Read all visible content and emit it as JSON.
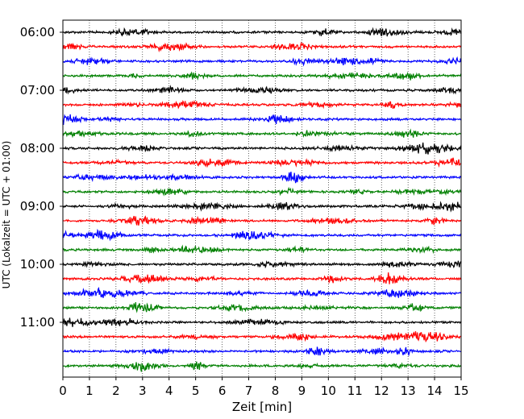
{
  "chart_data": {
    "type": "line",
    "title": "",
    "xlabel": "Zeit  [min]",
    "ylabel": "UTC (Lokalzeit = UTC + 01:00)",
    "xlim": [
      0,
      15
    ],
    "x_ticks": [
      "0",
      "1",
      "2",
      "3",
      "4",
      "5",
      "6",
      "7",
      "8",
      "9",
      "10",
      "11",
      "12",
      "13",
      "14",
      "15"
    ],
    "y_ticks": [
      "06:00",
      "07:00",
      "08:00",
      "09:00",
      "10:00",
      "11:00"
    ],
    "trace_minutes_per_line": 15,
    "start_time": "06:00",
    "num_traces": 24,
    "trace_colors": [
      "#000000",
      "#ff0000",
      "#0000ff",
      "#008000"
    ],
    "grid": {
      "vertical": true,
      "style": "dotted"
    },
    "legend": "none"
  }
}
